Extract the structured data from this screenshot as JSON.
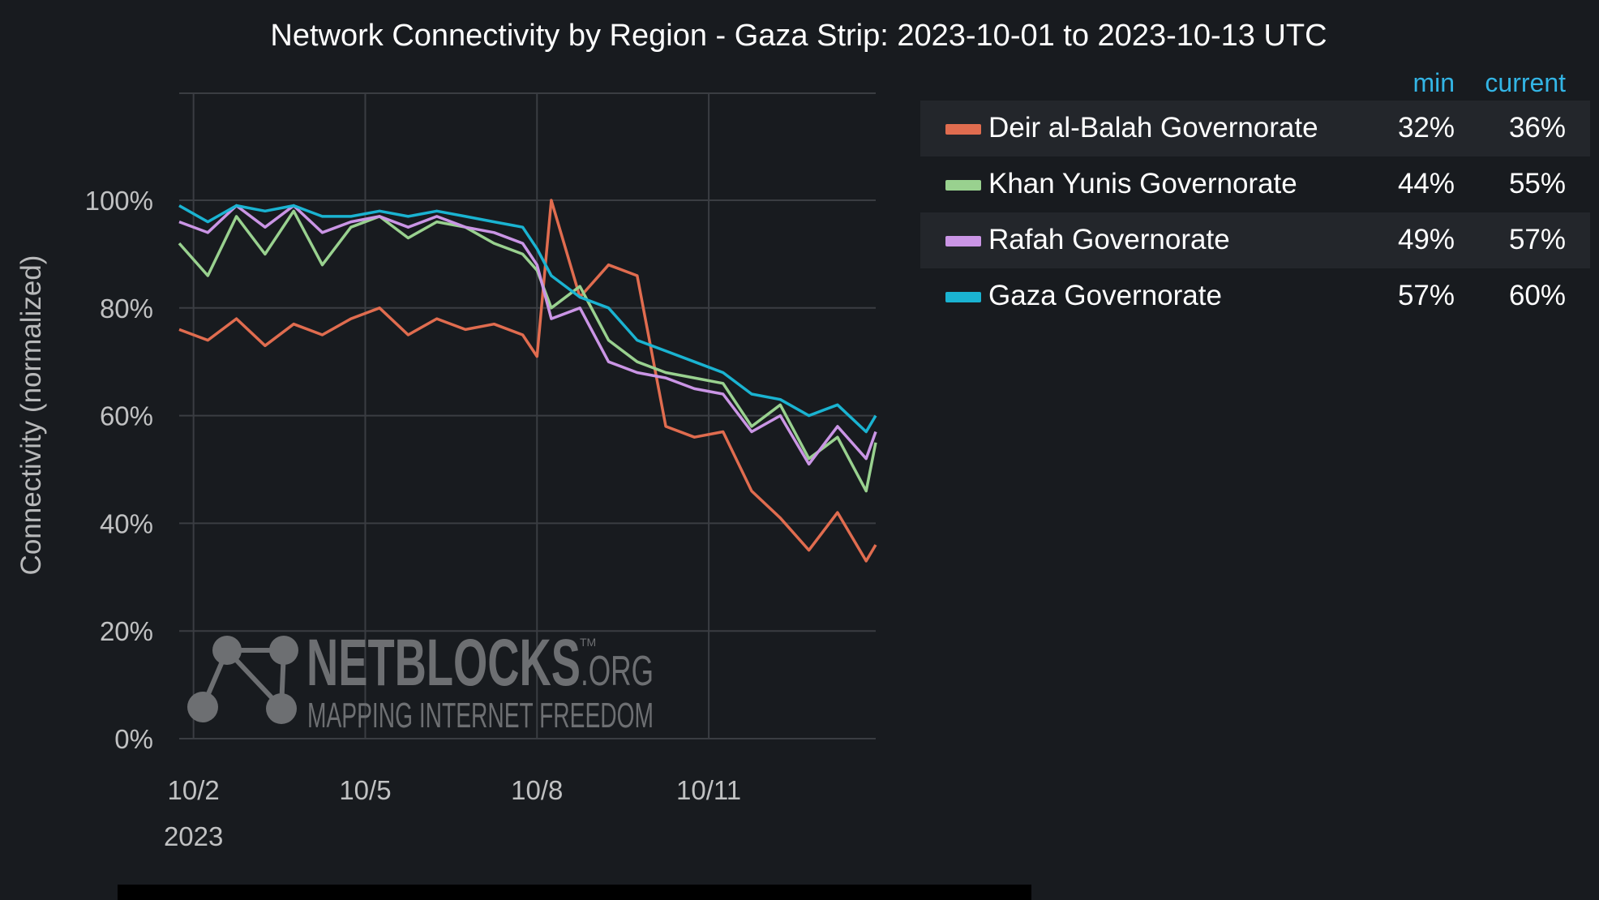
{
  "chart_data": {
    "type": "line",
    "title": "Network Connectivity by Region - Gaza Strip: 2023-10-01 to 2023-10-13 UTC",
    "ylabel": "Connectivity (normalized)",
    "xlabel": "",
    "ylim": [
      0,
      120
    ],
    "yticks": [
      "0%",
      "20%",
      "40%",
      "60%",
      "80%",
      "100%"
    ],
    "ytick_values": [
      0,
      20,
      40,
      60,
      80,
      100
    ],
    "xlim": [
      "2023-10-01 18:00",
      "2023-10-13 22:00"
    ],
    "xticks": [
      "10/2",
      "10/5",
      "10/8",
      "10/11"
    ],
    "xtick_dates": [
      "2023-10-02",
      "2023-10-05",
      "2023-10-08",
      "2023-10-11"
    ],
    "xtick_year": "2023",
    "grid": true,
    "legend_placement": "right",
    "legend_columns": [
      "min",
      "current"
    ],
    "watermark": {
      "name": "NETBLOCKS",
      "suffix": ".ORG",
      "tm": "TM",
      "tagline": "MAPPING INTERNET FREEDOM"
    },
    "x": [
      "2023-10-01 18:00",
      "2023-10-02 06:00",
      "2023-10-02 18:00",
      "2023-10-03 06:00",
      "2023-10-03 18:00",
      "2023-10-04 06:00",
      "2023-10-04 18:00",
      "2023-10-05 06:00",
      "2023-10-05 18:00",
      "2023-10-06 06:00",
      "2023-10-06 18:00",
      "2023-10-07 06:00",
      "2023-10-07 18:00",
      "2023-10-08 00:00",
      "2023-10-08 06:00",
      "2023-10-08 18:00",
      "2023-10-09 06:00",
      "2023-10-09 18:00",
      "2023-10-10 06:00",
      "2023-10-10 18:00",
      "2023-10-11 06:00",
      "2023-10-11 18:00",
      "2023-10-12 06:00",
      "2023-10-12 18:00",
      "2023-10-13 06:00",
      "2023-10-13 18:00",
      "2023-10-13 22:00"
    ],
    "series": [
      {
        "name": "Deir al-Balah Governorate",
        "color": "#e06c4f",
        "min": "32%",
        "current": "36%",
        "values": [
          76,
          74,
          78,
          73,
          77,
          75,
          78,
          80,
          75,
          78,
          76,
          77,
          75,
          71,
          100,
          82,
          88,
          86,
          58,
          56,
          57,
          46,
          41,
          35,
          42,
          33,
          36
        ]
      },
      {
        "name": "Khan Yunis Governorate",
        "color": "#99d18f",
        "min": "44%",
        "current": "55%",
        "values": [
          92,
          86,
          97,
          90,
          98,
          88,
          95,
          97,
          93,
          96,
          95,
          92,
          90,
          87,
          80,
          84,
          74,
          70,
          68,
          67,
          66,
          58,
          62,
          52,
          56,
          46,
          55
        ]
      },
      {
        "name": "Rafah Governorate",
        "color": "#ca95e5",
        "min": "49%",
        "current": "57%",
        "values": [
          96,
          94,
          99,
          95,
          99,
          94,
          96,
          97,
          95,
          97,
          95,
          94,
          92,
          88,
          78,
          80,
          70,
          68,
          67,
          65,
          64,
          57,
          60,
          51,
          58,
          52,
          57
        ]
      },
      {
        "name": "Gaza Governorate",
        "color": "#1ab3d1",
        "min": "57%",
        "current": "60%",
        "values": [
          99,
          96,
          99,
          98,
          99,
          97,
          97,
          98,
          97,
          98,
          97,
          96,
          95,
          91,
          86,
          82,
          80,
          74,
          72,
          70,
          68,
          64,
          63,
          60,
          62,
          57,
          60
        ]
      }
    ]
  }
}
